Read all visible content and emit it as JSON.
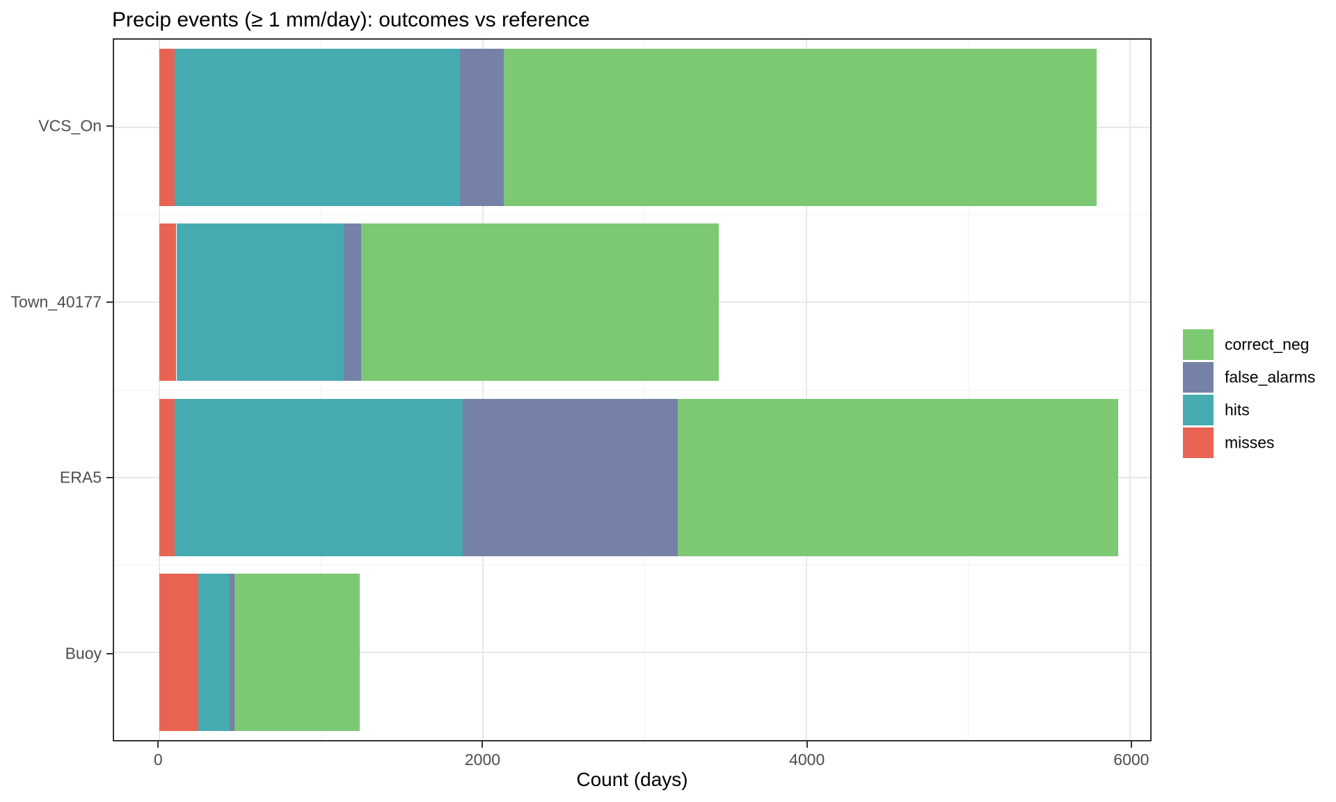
{
  "chart_data": {
    "type": "bar",
    "orientation": "horizontal",
    "stacked": true,
    "title": "Precip events (≥ 1 mm/day): outcomes vs reference",
    "xlabel": "Count (days)",
    "ylabel": "",
    "categories": [
      "VCS_On",
      "Town_40177",
      "ERA5",
      "Buoy"
    ],
    "series": [
      {
        "name": "misses",
        "color": "#e96352",
        "values": [
          95,
          105,
          95,
          240
        ]
      },
      {
        "name": "hits",
        "color": "#45abb0",
        "values": [
          1765,
          1035,
          1780,
          195
        ]
      },
      {
        "name": "false_alarms",
        "color": "#7681a8",
        "values": [
          270,
          105,
          1330,
          30
        ]
      },
      {
        "name": "correct_neg",
        "color": "#7cc873",
        "values": [
          3665,
          2215,
          2720,
          775
        ]
      }
    ],
    "totals": [
      5795,
      3460,
      5925,
      1240
    ],
    "legend": {
      "position": "right",
      "entries": [
        "correct_neg",
        "false_alarms",
        "hits",
        "misses"
      ]
    },
    "x_ticks": [
      0,
      2000,
      4000,
      6000
    ],
    "x_tick_labels": [
      "0",
      "2000",
      "4000",
      "6000"
    ],
    "x_minor_ticks": [
      1000,
      3000,
      5000
    ],
    "xlim": [
      -280,
      6125
    ],
    "grid": true,
    "bar_band_fraction": 0.9,
    "panel_border_color": "#333333",
    "grid_major_color": "#e7e7e7",
    "grid_minor_color": "#f1f1f1",
    "tick_label_color": "#4d4d4d"
  }
}
